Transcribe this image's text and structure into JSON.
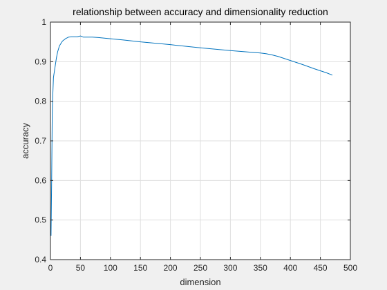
{
  "colors": {
    "figure_bg": "#f0f0f0",
    "axes_bg": "#ffffff",
    "axis": "#262626",
    "grid": "#dfdfdf",
    "line": "#0072bd"
  },
  "chart_data": {
    "type": "line",
    "title": "relationship between accuracy and dimensionality reduction",
    "xlabel": "dimension",
    "ylabel": "accuracy",
    "xlim": [
      0,
      500
    ],
    "ylim": [
      0.4,
      1
    ],
    "xticks": [
      0,
      50,
      100,
      150,
      200,
      250,
      300,
      350,
      400,
      450,
      500
    ],
    "yticks": [
      0.4,
      0.5,
      0.6,
      0.7,
      0.8,
      0.9,
      1
    ],
    "xtick_labels": [
      "0",
      "50",
      "100",
      "150",
      "200",
      "250",
      "300",
      "350",
      "400",
      "450",
      "500"
    ],
    "ytick_labels": [
      "0.4",
      "0.5",
      "0.6",
      "0.7",
      "0.8",
      "0.9",
      "1"
    ],
    "grid": true,
    "legend": "none",
    "series": [
      {
        "color": "#0072bd",
        "x": [
          1,
          2,
          3,
          4,
          5,
          7,
          10,
          12,
          15,
          20,
          25,
          30,
          35,
          40,
          45,
          50,
          55,
          60,
          70,
          80,
          100,
          120,
          150,
          200,
          250,
          300,
          350,
          360,
          370,
          380,
          400,
          420,
          440,
          460,
          470
        ],
        "y": [
          0.46,
          0.6,
          0.77,
          0.82,
          0.86,
          0.88,
          0.91,
          0.925,
          0.94,
          0.952,
          0.958,
          0.962,
          0.963,
          0.963,
          0.963,
          0.965,
          0.962,
          0.962,
          0.962,
          0.961,
          0.958,
          0.955,
          0.95,
          0.943,
          0.935,
          0.928,
          0.922,
          0.92,
          0.917,
          0.913,
          0.903,
          0.893,
          0.882,
          0.872,
          0.866
        ]
      }
    ]
  }
}
